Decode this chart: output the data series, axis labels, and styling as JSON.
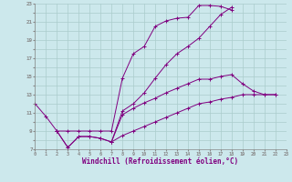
{
  "bg_color": "#cce8ec",
  "grid_color": "#aacccc",
  "line_color": "#800080",
  "xlabel": "Windchill (Refroidissement éolien,°C)",
  "ylim": [
    7,
    23
  ],
  "xlim": [
    0,
    23
  ],
  "series": [
    {
      "x": [
        0,
        1,
        2,
        3,
        4,
        5,
        6,
        7,
        8,
        9,
        10,
        11,
        12,
        13,
        14,
        15,
        16,
        17,
        18
      ],
      "y": [
        12.0,
        10.6,
        9.0,
        9.0,
        9.0,
        9.0,
        9.0,
        9.0,
        14.8,
        17.5,
        18.3,
        20.5,
        21.1,
        21.4,
        21.5,
        22.8,
        22.8,
        22.7,
        22.3
      ]
    },
    {
      "x": [
        2,
        3,
        4,
        5,
        6,
        7,
        8,
        9,
        10,
        11,
        12,
        13,
        14,
        15,
        16,
        17,
        18
      ],
      "y": [
        9.0,
        7.2,
        8.4,
        8.4,
        8.2,
        7.8,
        11.2,
        12.0,
        13.2,
        14.8,
        16.3,
        17.5,
        18.3,
        19.2,
        20.5,
        21.8,
        22.6
      ]
    },
    {
      "x": [
        2,
        3,
        4,
        5,
        6,
        7,
        8,
        9,
        10,
        11,
        12,
        13,
        14,
        15,
        16,
        17,
        18,
        19,
        20,
        21,
        22
      ],
      "y": [
        9.0,
        7.2,
        8.4,
        8.4,
        8.2,
        7.8,
        8.5,
        9.0,
        9.5,
        10.0,
        10.5,
        11.0,
        11.5,
        12.0,
        12.2,
        12.5,
        12.7,
        13.0,
        13.0,
        13.0,
        13.0
      ]
    },
    {
      "x": [
        7,
        8,
        9,
        10,
        11,
        12,
        13,
        14,
        15,
        16,
        17,
        18,
        19,
        20,
        21,
        22
      ],
      "y": [
        7.8,
        10.8,
        11.5,
        12.1,
        12.6,
        13.2,
        13.7,
        14.2,
        14.7,
        14.7,
        15.0,
        15.2,
        14.2,
        13.4,
        13.0,
        13.0
      ]
    }
  ]
}
